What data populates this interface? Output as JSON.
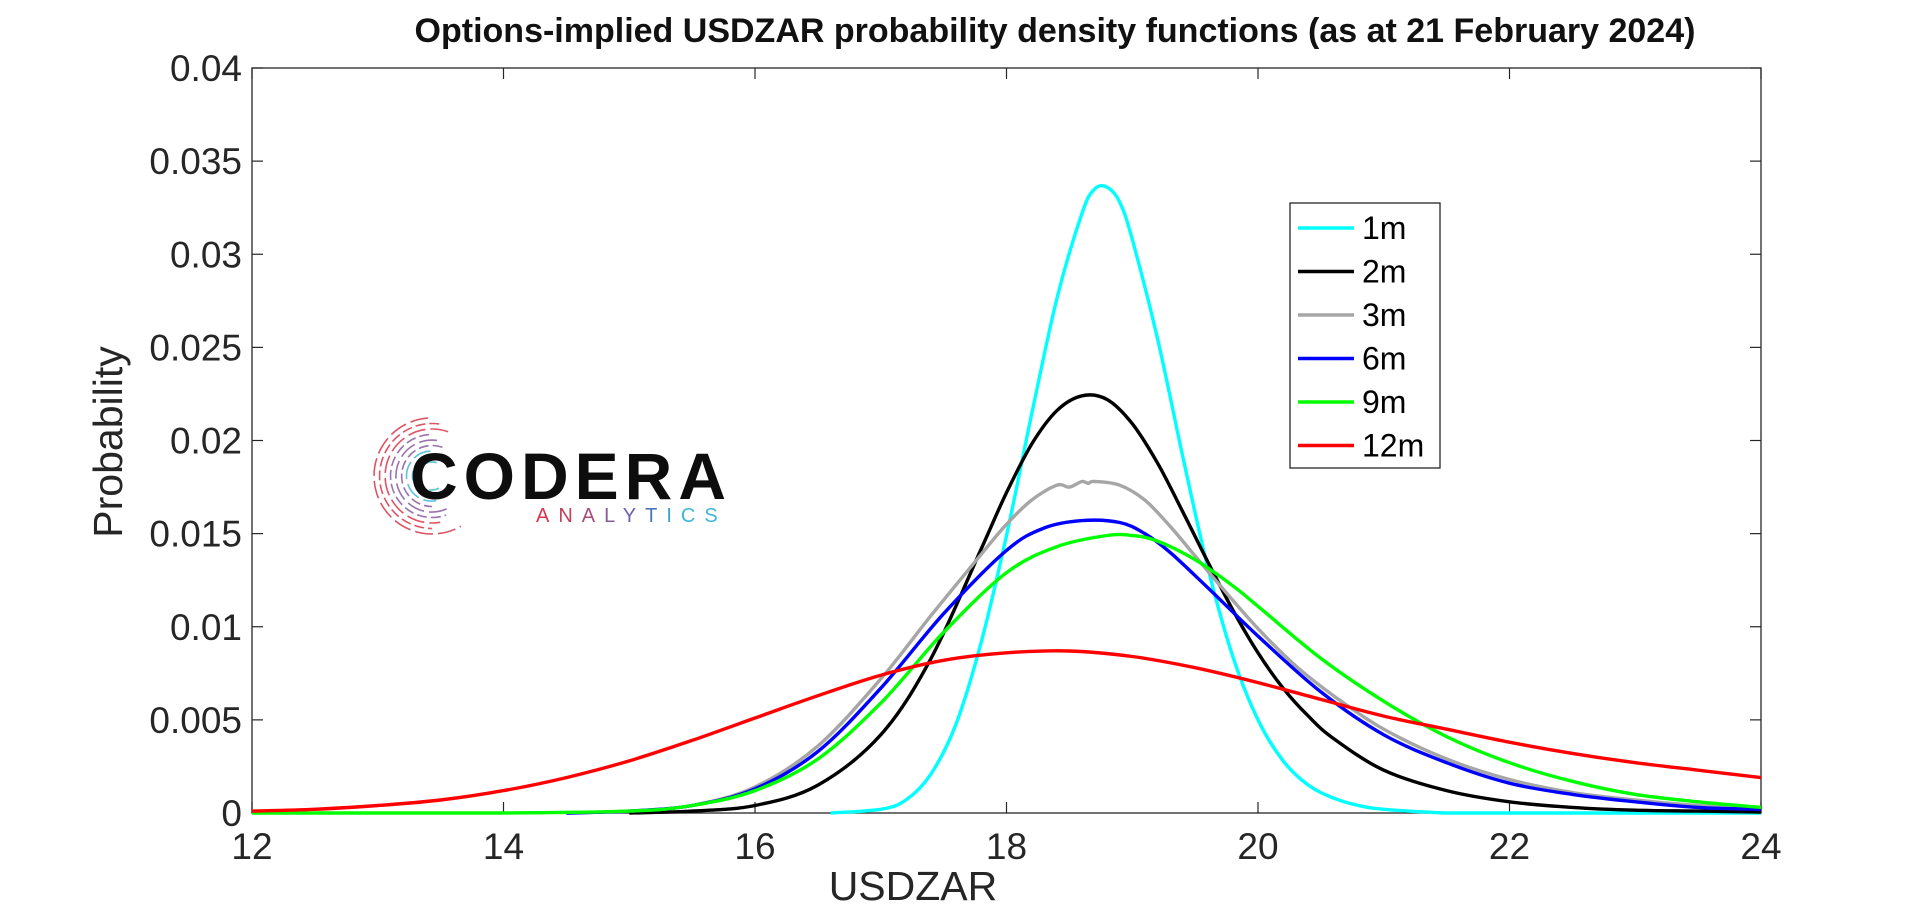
{
  "chart_data": {
    "type": "line",
    "title": "Options-implied USDZAR probability density functions (as at 21 February 2024)",
    "xlabel": "USDZAR",
    "ylabel": "Probability",
    "xlim": [
      12,
      24
    ],
    "ylim": [
      0,
      0.04
    ],
    "xticks": [
      "12",
      "14",
      "16",
      "18",
      "20",
      "22",
      "24"
    ],
    "yticks": [
      "0",
      "0.005",
      "0.01",
      "0.015",
      "0.02",
      "0.025",
      "0.03",
      "0.035",
      "0.04"
    ],
    "grid": false,
    "legend_position": "top-right",
    "series": [
      {
        "name": "1m",
        "color": "#00FFFF",
        "x": [
          16.6,
          17.0,
          17.2,
          17.4,
          17.6,
          17.8,
          18.0,
          18.2,
          18.4,
          18.6,
          18.7,
          18.8,
          18.9,
          19.0,
          19.2,
          19.4,
          19.6,
          19.8,
          20.0,
          20.2,
          20.4,
          20.6,
          20.8,
          21.0,
          21.5,
          22.0,
          23.0,
          24.0
        ],
        "y": [
          0.0,
          0.0002,
          0.0007,
          0.0021,
          0.0048,
          0.0092,
          0.0149,
          0.0214,
          0.0276,
          0.0322,
          0.0335,
          0.0336,
          0.0328,
          0.0308,
          0.0255,
          0.0192,
          0.0132,
          0.0084,
          0.005,
          0.0028,
          0.0015,
          0.0008,
          0.0004,
          0.0002,
          0.0,
          0.0,
          0.0,
          0.0
        ]
      },
      {
        "name": "2m",
        "color": "#000000",
        "x": [
          15.0,
          15.5,
          16.0,
          16.5,
          17.0,
          17.4,
          17.8,
          18.0,
          18.2,
          18.4,
          18.6,
          18.8,
          19.0,
          19.2,
          19.4,
          19.6,
          19.8,
          20.0,
          20.2,
          20.4,
          20.6,
          21.0,
          21.5,
          22.0,
          22.5,
          23.0,
          23.5,
          24.0
        ],
        "y": [
          0.0,
          0.0001,
          0.0004,
          0.0015,
          0.0042,
          0.0083,
          0.0142,
          0.0172,
          0.0198,
          0.0216,
          0.0224,
          0.0222,
          0.0209,
          0.0188,
          0.0162,
          0.0135,
          0.0109,
          0.0086,
          0.0067,
          0.0052,
          0.004,
          0.0023,
          0.0012,
          0.0006,
          0.0003,
          0.00015,
          0.0001,
          5e-05
        ]
      },
      {
        "name": "3m",
        "color": "#A6A6A6",
        "x": [
          14.5,
          15.0,
          15.5,
          16.0,
          16.5,
          17.0,
          17.4,
          17.8,
          18.0,
          18.2,
          18.4,
          18.5,
          18.6,
          18.65,
          18.7,
          18.9,
          19.1,
          19.3,
          19.5,
          19.7,
          20.0,
          20.3,
          20.6,
          21.0,
          21.5,
          22.0,
          22.5,
          23.0,
          23.5,
          24.0
        ],
        "y": [
          0.0,
          0.0001,
          0.0004,
          0.0014,
          0.0036,
          0.0072,
          0.0106,
          0.0139,
          0.0155,
          0.0168,
          0.0176,
          0.0175,
          0.0178,
          0.0177,
          0.0178,
          0.0176,
          0.0168,
          0.0154,
          0.0138,
          0.0122,
          0.0099,
          0.0079,
          0.0063,
          0.0045,
          0.0029,
          0.0018,
          0.0011,
          0.0007,
          0.0004,
          0.0002
        ]
      },
      {
        "name": "6m",
        "color": "#0000FF",
        "x": [
          14.5,
          15.0,
          15.5,
          16.0,
          16.5,
          17.0,
          17.5,
          18.0,
          18.3,
          18.6,
          18.9,
          19.1,
          19.3,
          19.6,
          20.0,
          20.5,
          21.0,
          21.5,
          22.0,
          22.5,
          23.0,
          23.5,
          24.0
        ],
        "y": [
          0.0,
          0.0001,
          0.0004,
          0.0013,
          0.0033,
          0.0067,
          0.0107,
          0.0141,
          0.0153,
          0.0157,
          0.0156,
          0.015,
          0.014,
          0.0121,
          0.0095,
          0.0065,
          0.0042,
          0.0027,
          0.0016,
          0.001,
          0.0006,
          0.0003,
          0.0002
        ]
      },
      {
        "name": "9m",
        "color": "#00FF00",
        "x": [
          12.0,
          13.0,
          14.0,
          15.0,
          15.5,
          16.0,
          16.5,
          17.0,
          17.5,
          18.0,
          18.4,
          18.8,
          19.0,
          19.2,
          19.5,
          19.8,
          20.0,
          20.5,
          21.0,
          21.5,
          22.0,
          22.5,
          23.0,
          23.5,
          24.0
        ],
        "y": [
          0.0,
          0.0,
          0.0,
          0.0001,
          0.0004,
          0.0012,
          0.0029,
          0.0059,
          0.0097,
          0.0129,
          0.0143,
          0.0149,
          0.0149,
          0.0146,
          0.0136,
          0.0122,
          0.0111,
          0.0083,
          0.006,
          0.0041,
          0.0027,
          0.0017,
          0.001,
          0.0006,
          0.0003
        ]
      },
      {
        "name": "12m",
        "color": "#FF0000",
        "x": [
          12.0,
          12.5,
          13.0,
          13.5,
          14.0,
          14.5,
          15.0,
          15.5,
          16.0,
          16.5,
          17.0,
          17.5,
          18.0,
          18.5,
          19.0,
          19.5,
          20.0,
          20.5,
          21.0,
          21.5,
          22.0,
          22.5,
          23.0,
          23.5,
          24.0
        ],
        "y": [
          0.0001,
          0.0002,
          0.0004,
          0.0007,
          0.0012,
          0.0019,
          0.0028,
          0.0039,
          0.0051,
          0.0063,
          0.0074,
          0.0082,
          0.0086,
          0.0087,
          0.0084,
          0.0078,
          0.007,
          0.0061,
          0.0052,
          0.0045,
          0.0038,
          0.0032,
          0.0027,
          0.0023,
          0.0019
        ]
      }
    ]
  },
  "logo": {
    "wordmark": "CODERA",
    "tagline": "ANALYTICS",
    "colors": [
      "#d6364a",
      "#8a5a9e",
      "#3a66a8",
      "#3fb6d6"
    ]
  }
}
